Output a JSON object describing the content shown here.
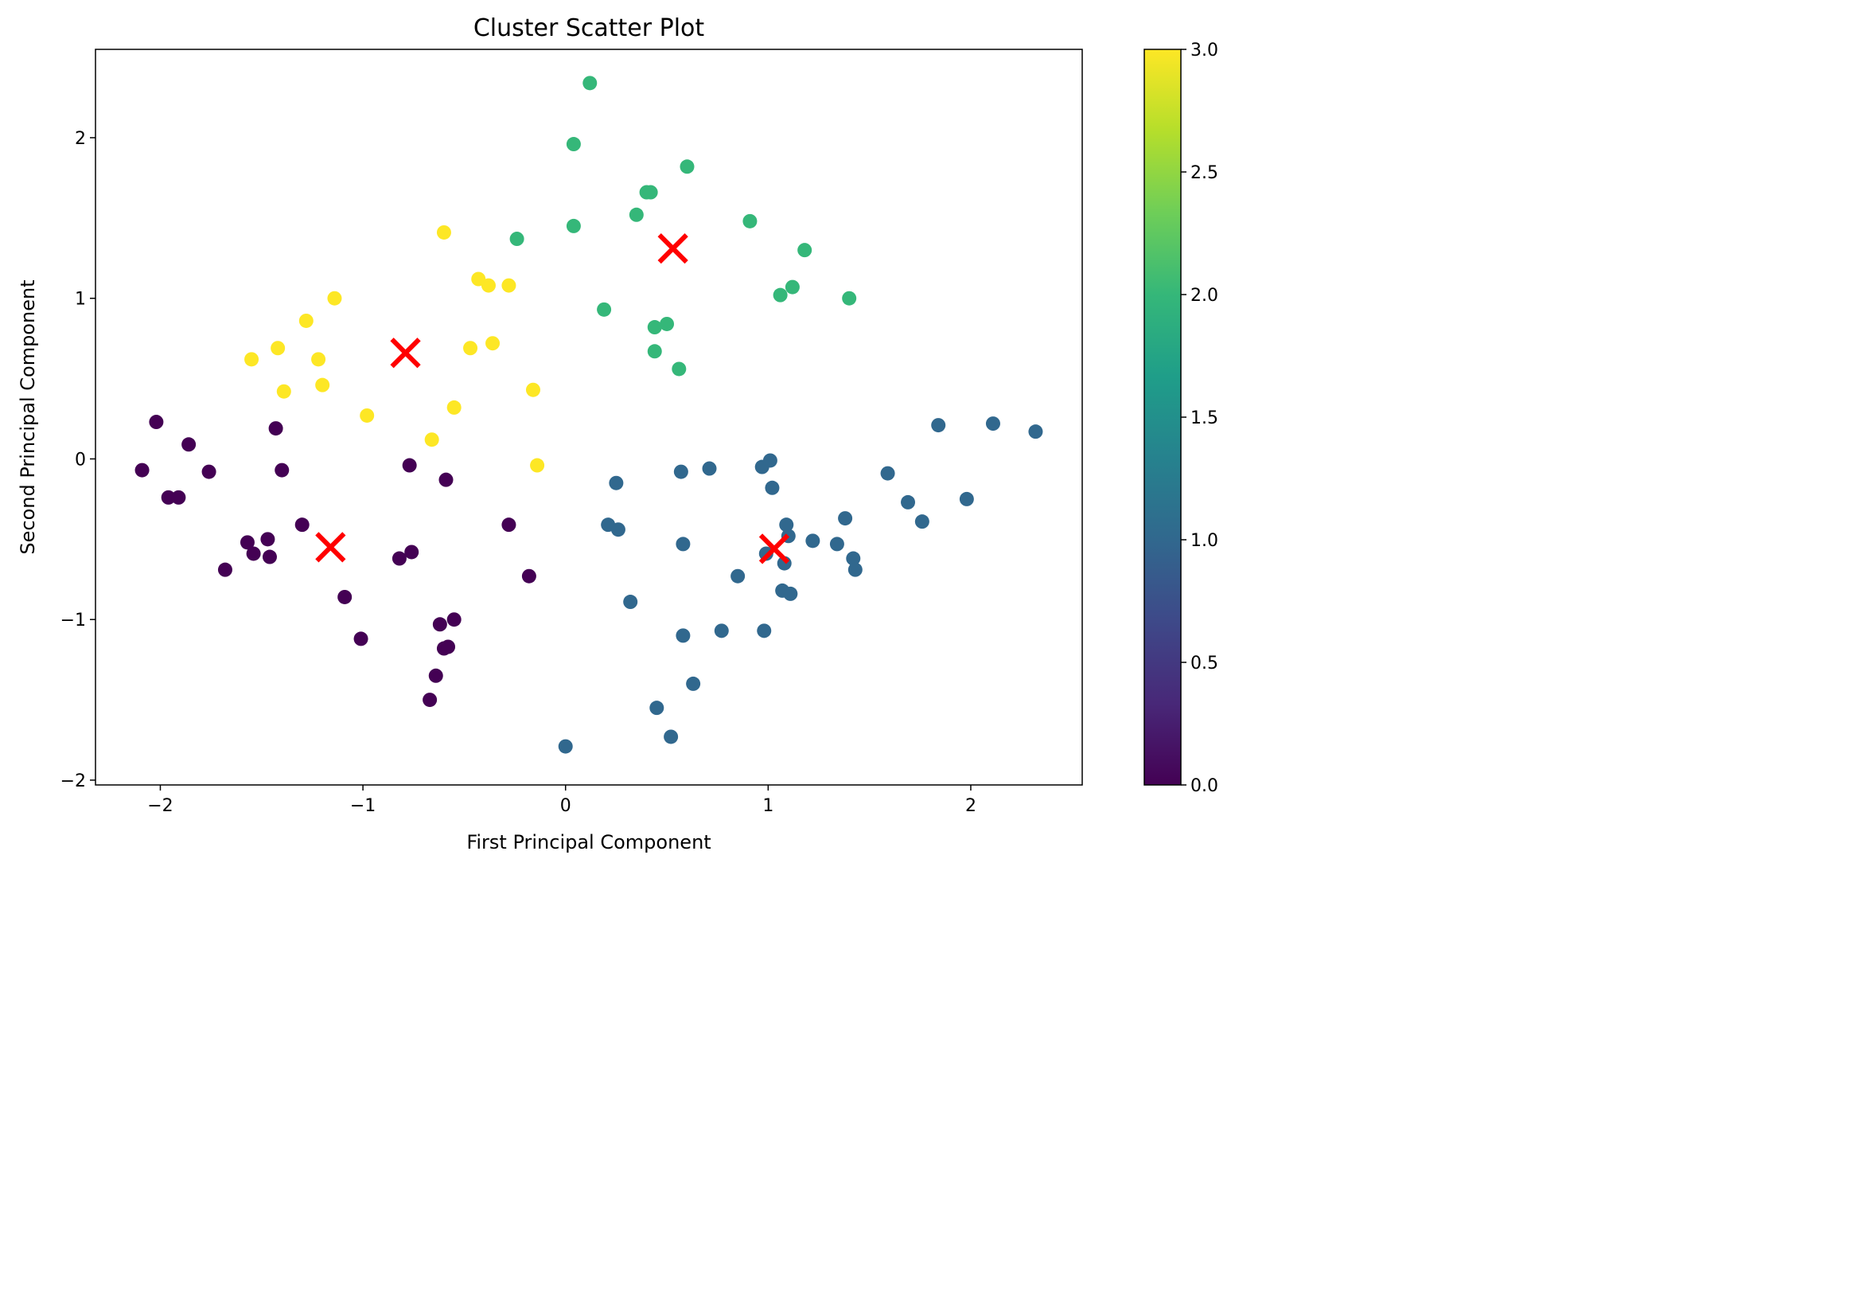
{
  "chart_data": {
    "type": "scatter",
    "title": "Cluster Scatter Plot",
    "xlabel": "First Principal Component",
    "ylabel": "Second Principal Component",
    "xlim": [
      -2.32,
      2.55
    ],
    "ylim": [
      -2.03,
      2.55
    ],
    "xticks": [
      -2,
      -1,
      0,
      1,
      2
    ],
    "xtick_labels": [
      "−2",
      "−1",
      "0",
      "1",
      "2"
    ],
    "yticks": [
      -2,
      -1,
      0,
      1,
      2
    ],
    "ytick_labels": [
      "−2",
      "−1",
      "0",
      "1",
      "2"
    ],
    "grid": false,
    "colorbar": {
      "range": [
        0,
        3
      ],
      "ticks": [
        0,
        0.5,
        1,
        1.5,
        2,
        2.5,
        3
      ],
      "tick_labels": [
        "0.0",
        "0.5",
        "1.0",
        "1.5",
        "2.0",
        "2.5",
        "3.0"
      ],
      "colormap": "viridis",
      "stops": [
        "#440154",
        "#482878",
        "#3e4989",
        "#31688e",
        "#26828e",
        "#1f9e89",
        "#35b779",
        "#6ece58",
        "#b5de2b",
        "#fde725"
      ]
    },
    "cluster_colors": [
      "#440154",
      "#31688e",
      "#35b779",
      "#fde725"
    ],
    "points": [
      {
        "x": -2.02,
        "y": 0.23,
        "cluster": 0
      },
      {
        "x": -2.09,
        "y": -0.07,
        "cluster": 0
      },
      {
        "x": -1.96,
        "y": -0.24,
        "cluster": 0
      },
      {
        "x": -1.91,
        "y": -0.24,
        "cluster": 0
      },
      {
        "x": -1.86,
        "y": 0.09,
        "cluster": 0
      },
      {
        "x": -1.76,
        "y": -0.08,
        "cluster": 0
      },
      {
        "x": -1.68,
        "y": -0.69,
        "cluster": 0
      },
      {
        "x": -1.57,
        "y": -0.52,
        "cluster": 0
      },
      {
        "x": -1.54,
        "y": -0.59,
        "cluster": 0
      },
      {
        "x": -1.47,
        "y": -0.5,
        "cluster": 0
      },
      {
        "x": -1.46,
        "y": -0.61,
        "cluster": 0
      },
      {
        "x": -1.43,
        "y": 0.19,
        "cluster": 0
      },
      {
        "x": -1.4,
        "y": -0.07,
        "cluster": 0
      },
      {
        "x": -1.3,
        "y": -0.41,
        "cluster": 0
      },
      {
        "x": -1.09,
        "y": -0.86,
        "cluster": 0
      },
      {
        "x": -1.01,
        "y": -1.12,
        "cluster": 0
      },
      {
        "x": -0.82,
        "y": -0.62,
        "cluster": 0
      },
      {
        "x": -0.77,
        "y": -0.04,
        "cluster": 0
      },
      {
        "x": -0.76,
        "y": -0.58,
        "cluster": 0
      },
      {
        "x": -0.67,
        "y": -1.5,
        "cluster": 0
      },
      {
        "x": -0.64,
        "y": -1.35,
        "cluster": 0
      },
      {
        "x": -0.62,
        "y": -1.03,
        "cluster": 0
      },
      {
        "x": -0.6,
        "y": -1.18,
        "cluster": 0
      },
      {
        "x": -0.58,
        "y": -1.17,
        "cluster": 0
      },
      {
        "x": -0.59,
        "y": -0.13,
        "cluster": 0
      },
      {
        "x": -0.55,
        "y": -1.0,
        "cluster": 0
      },
      {
        "x": -0.28,
        "y": -0.41,
        "cluster": 0
      },
      {
        "x": -0.18,
        "y": -0.73,
        "cluster": 0
      },
      {
        "x": 0.0,
        "y": -1.79,
        "cluster": 1
      },
      {
        "x": 0.21,
        "y": -0.41,
        "cluster": 1
      },
      {
        "x": 0.25,
        "y": -0.15,
        "cluster": 1
      },
      {
        "x": 0.26,
        "y": -0.44,
        "cluster": 1
      },
      {
        "x": 0.32,
        "y": -0.89,
        "cluster": 1
      },
      {
        "x": 0.45,
        "y": -1.55,
        "cluster": 1
      },
      {
        "x": 0.52,
        "y": -1.73,
        "cluster": 1
      },
      {
        "x": 0.57,
        "y": -0.08,
        "cluster": 1
      },
      {
        "x": 0.58,
        "y": -0.53,
        "cluster": 1
      },
      {
        "x": 0.58,
        "y": -1.1,
        "cluster": 1
      },
      {
        "x": 0.63,
        "y": -1.4,
        "cluster": 1
      },
      {
        "x": 0.71,
        "y": -0.06,
        "cluster": 1
      },
      {
        "x": 0.77,
        "y": -1.07,
        "cluster": 1
      },
      {
        "x": 0.85,
        "y": -0.73,
        "cluster": 1
      },
      {
        "x": 0.97,
        "y": -0.05,
        "cluster": 1
      },
      {
        "x": 0.98,
        "y": -1.07,
        "cluster": 1
      },
      {
        "x": 0.99,
        "y": -0.59,
        "cluster": 1
      },
      {
        "x": 1.01,
        "y": -0.01,
        "cluster": 1
      },
      {
        "x": 1.02,
        "y": -0.18,
        "cluster": 1
      },
      {
        "x": 1.07,
        "y": -0.82,
        "cluster": 1
      },
      {
        "x": 1.08,
        "y": -0.65,
        "cluster": 1
      },
      {
        "x": 1.09,
        "y": -0.41,
        "cluster": 1
      },
      {
        "x": 1.1,
        "y": -0.48,
        "cluster": 1
      },
      {
        "x": 1.11,
        "y": -0.84,
        "cluster": 1
      },
      {
        "x": 1.22,
        "y": -0.51,
        "cluster": 1
      },
      {
        "x": 1.34,
        "y": -0.53,
        "cluster": 1
      },
      {
        "x": 1.38,
        "y": -0.37,
        "cluster": 1
      },
      {
        "x": 1.42,
        "y": -0.62,
        "cluster": 1
      },
      {
        "x": 1.43,
        "y": -0.69,
        "cluster": 1
      },
      {
        "x": 1.59,
        "y": -0.09,
        "cluster": 1
      },
      {
        "x": 1.69,
        "y": -0.27,
        "cluster": 1
      },
      {
        "x": 1.76,
        "y": -0.39,
        "cluster": 1
      },
      {
        "x": 1.84,
        "y": 0.21,
        "cluster": 1
      },
      {
        "x": 1.98,
        "y": -0.25,
        "cluster": 1
      },
      {
        "x": 2.11,
        "y": 0.22,
        "cluster": 1
      },
      {
        "x": 2.32,
        "y": 0.17,
        "cluster": 1
      },
      {
        "x": 0.12,
        "y": 2.34,
        "cluster": 2
      },
      {
        "x": 0.04,
        "y": 1.96,
        "cluster": 2
      },
      {
        "x": -0.24,
        "y": 1.37,
        "cluster": 2
      },
      {
        "x": 0.04,
        "y": 1.45,
        "cluster": 2
      },
      {
        "x": 0.19,
        "y": 0.93,
        "cluster": 2
      },
      {
        "x": 0.35,
        "y": 1.52,
        "cluster": 2
      },
      {
        "x": 0.4,
        "y": 1.66,
        "cluster": 2
      },
      {
        "x": 0.42,
        "y": 1.66,
        "cluster": 2
      },
      {
        "x": 0.44,
        "y": 0.82,
        "cluster": 2
      },
      {
        "x": 0.44,
        "y": 0.67,
        "cluster": 2
      },
      {
        "x": 0.5,
        "y": 0.84,
        "cluster": 2
      },
      {
        "x": 0.56,
        "y": 0.56,
        "cluster": 2
      },
      {
        "x": 0.6,
        "y": 1.82,
        "cluster": 2
      },
      {
        "x": 0.91,
        "y": 1.48,
        "cluster": 2
      },
      {
        "x": 1.06,
        "y": 1.02,
        "cluster": 2
      },
      {
        "x": 1.12,
        "y": 1.07,
        "cluster": 2
      },
      {
        "x": 1.18,
        "y": 1.3,
        "cluster": 2
      },
      {
        "x": 1.4,
        "y": 1.0,
        "cluster": 2
      },
      {
        "x": -1.55,
        "y": 0.62,
        "cluster": 3
      },
      {
        "x": -1.42,
        "y": 0.69,
        "cluster": 3
      },
      {
        "x": -1.39,
        "y": 0.42,
        "cluster": 3
      },
      {
        "x": -1.28,
        "y": 0.86,
        "cluster": 3
      },
      {
        "x": -1.22,
        "y": 0.62,
        "cluster": 3
      },
      {
        "x": -1.2,
        "y": 0.46,
        "cluster": 3
      },
      {
        "x": -1.14,
        "y": 1.0,
        "cluster": 3
      },
      {
        "x": -0.98,
        "y": 0.27,
        "cluster": 3
      },
      {
        "x": -0.66,
        "y": 0.12,
        "cluster": 3
      },
      {
        "x": -0.6,
        "y": 1.41,
        "cluster": 3
      },
      {
        "x": -0.55,
        "y": 0.32,
        "cluster": 3
      },
      {
        "x": -0.47,
        "y": 0.69,
        "cluster": 3
      },
      {
        "x": -0.43,
        "y": 1.12,
        "cluster": 3
      },
      {
        "x": -0.38,
        "y": 1.08,
        "cluster": 3
      },
      {
        "x": -0.36,
        "y": 0.72,
        "cluster": 3
      },
      {
        "x": -0.28,
        "y": 1.08,
        "cluster": 3
      },
      {
        "x": -0.16,
        "y": 0.43,
        "cluster": 3
      },
      {
        "x": -0.14,
        "y": -0.04,
        "cluster": 3
      }
    ],
    "centroids": [
      {
        "x": -1.16,
        "y": -0.55
      },
      {
        "x": 1.03,
        "y": -0.56
      },
      {
        "x": 0.53,
        "y": 1.31
      },
      {
        "x": -0.79,
        "y": 0.66
      }
    ],
    "centroid_color": "#ff0000"
  }
}
